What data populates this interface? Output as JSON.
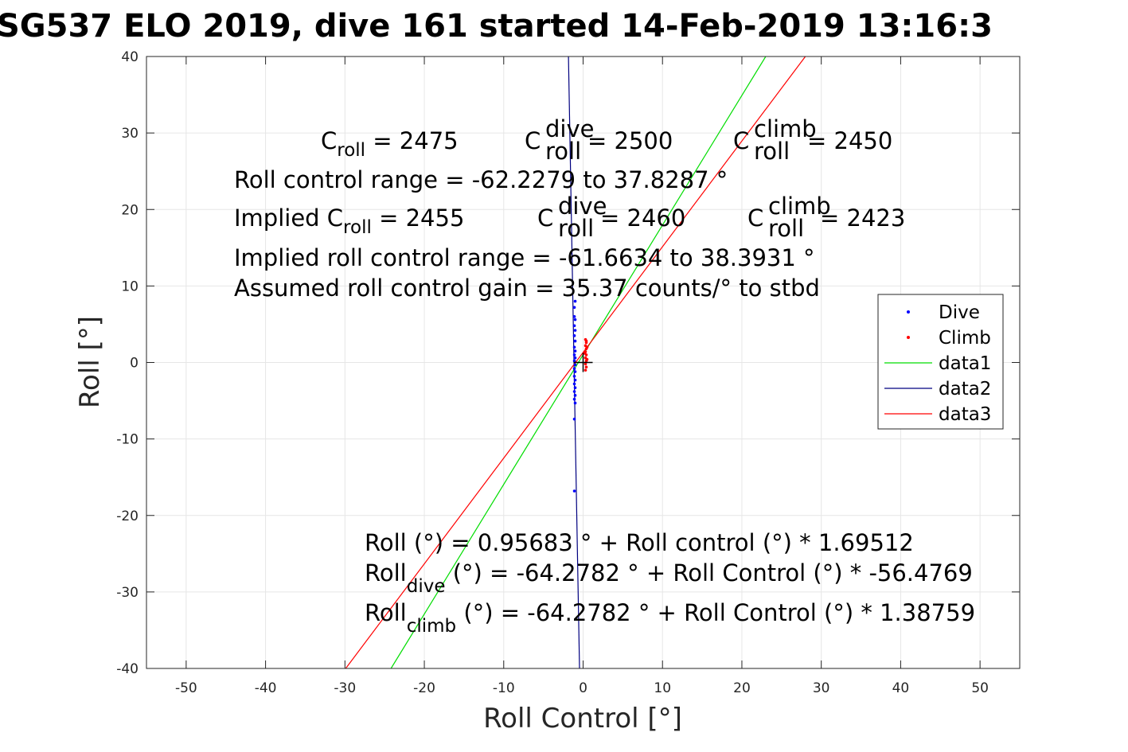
{
  "chart_data": {
    "type": "scatter",
    "title": "SG537 ELO 2019, dive 161 started 14-Feb-2019 13:16:3",
    "xlabel": "Roll Control [°]",
    "ylabel": "Roll [°]",
    "xlim": [
      -55,
      55
    ],
    "ylim": [
      -40,
      40
    ],
    "xticks": [
      -50,
      -40,
      -30,
      -20,
      -10,
      0,
      10,
      20,
      30,
      40,
      50
    ],
    "yticks": [
      -40,
      -30,
      -20,
      -10,
      0,
      10,
      20,
      30,
      40
    ],
    "grid": true,
    "legend_position": "east",
    "colors": {
      "Dive": "#0000ff",
      "Climb": "#ff0000",
      "data1": "#00dd00",
      "data2": "#000080",
      "data3": "#ff0000"
    },
    "series": [
      {
        "name": "Dive",
        "kind": "points",
        "points": [
          [
            -1.0,
            8.0
          ],
          [
            -1.1,
            7.2
          ],
          [
            -1.1,
            6.0
          ],
          [
            -1.0,
            5.6
          ],
          [
            -1.1,
            4.8
          ],
          [
            -1.0,
            4.2
          ],
          [
            -1.1,
            3.5
          ],
          [
            -1.0,
            2.8
          ],
          [
            -1.1,
            2.0
          ],
          [
            -1.0,
            1.5
          ],
          [
            -1.1,
            1.0
          ],
          [
            -1.0,
            0.6
          ],
          [
            -1.1,
            0.2
          ],
          [
            -1.0,
            -0.3
          ],
          [
            -1.1,
            -0.8
          ],
          [
            -1.0,
            -1.2
          ],
          [
            -1.1,
            -1.8
          ],
          [
            -1.0,
            -2.3
          ],
          [
            -1.1,
            -2.8
          ],
          [
            -1.0,
            -3.3
          ],
          [
            -1.1,
            -3.8
          ],
          [
            -1.0,
            -4.3
          ],
          [
            -1.1,
            -4.8
          ],
          [
            -1.0,
            -5.3
          ],
          [
            -1.1,
            -7.4
          ],
          [
            -1.1,
            -16.8
          ]
        ]
      },
      {
        "name": "Climb",
        "kind": "points",
        "points": [
          [
            0.3,
            3.0
          ],
          [
            0.4,
            2.6
          ],
          [
            0.3,
            2.2
          ],
          [
            0.4,
            1.8
          ],
          [
            0.3,
            1.4
          ],
          [
            0.4,
            1.0
          ],
          [
            0.3,
            0.6
          ],
          [
            0.4,
            0.2
          ],
          [
            0.3,
            -0.2
          ],
          [
            0.4,
            -0.6
          ],
          [
            0.3,
            -1.0
          ],
          [
            0.4,
            2.8
          ],
          [
            0.5,
            2.0
          ],
          [
            0.2,
            1.2
          ],
          [
            0.5,
            0.4
          ]
        ]
      },
      {
        "name": "data1",
        "kind": "line",
        "points": [
          [
            -24.2,
            -40
          ],
          [
            23.0,
            40
          ]
        ]
      },
      {
        "name": "data2",
        "kind": "line",
        "points": [
          [
            -1.85,
            40
          ],
          [
            -0.45,
            -40
          ]
        ]
      },
      {
        "name": "data3",
        "kind": "line",
        "points": [
          [
            -29.9,
            -40
          ],
          [
            28.0,
            40
          ]
        ]
      }
    ],
    "origin_marker": "+",
    "annotations": {
      "line1": {
        "c_roll": "C",
        "c_roll_sub": "roll",
        "c_roll_val": " = 2475",
        "c_dive": "C",
        "c_dive_sup": "dive",
        "c_dive_sub": "roll",
        "c_dive_val": " = 2500",
        "c_climb": "C",
        "c_climb_sup": "climb",
        "c_climb_sub": "roll",
        "c_climb_val": " = 2450"
      },
      "line2": "Roll control range = -62.2279 to 37.8287 °",
      "line3": {
        "implied": "Implied C",
        "implied_sub": "roll",
        "implied_val": " = 2455",
        "c_dive": "C",
        "c_dive_sup": "dive",
        "c_dive_sub": "roll",
        "c_dive_val": " = 2460",
        "c_climb": "C",
        "c_climb_sup": "climb",
        "c_climb_sub": "roll",
        "c_climb_val": " = 2423"
      },
      "line4": "Implied roll control range = -61.6634 to 38.3931 °",
      "line5": "Assumed roll control gain = 35.37 counts/° to stbd",
      "eq1": "Roll (°) = 0.95683 ° + Roll control (°) * 1.69512",
      "eq2": {
        "pre": "Roll",
        "sub": "dive",
        "post": " (°) = -64.2782 ° + Roll Control (°) * -56.4769"
      },
      "eq3": {
        "pre": "Roll",
        "sub": "climb",
        "post": " (°) = -64.2782 ° + Roll Control (°) * 1.38759"
      }
    }
  }
}
